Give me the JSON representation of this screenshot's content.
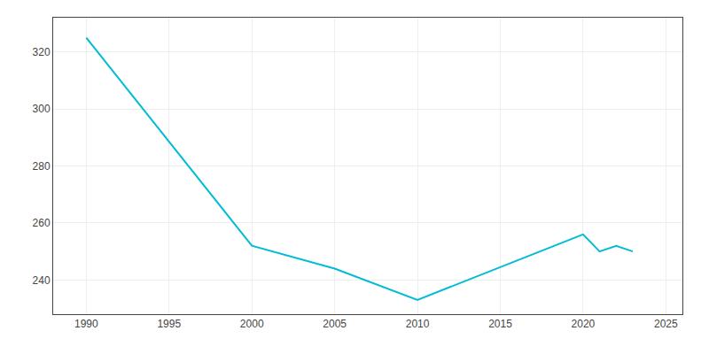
{
  "chart_data": {
    "type": "line",
    "x": [
      1990,
      2000,
      2005,
      2010,
      2020,
      2021,
      2022,
      2023
    ],
    "values": [
      325,
      252,
      244,
      233,
      256,
      250,
      252,
      250
    ],
    "color": "#00bcd4",
    "xlim": [
      1988,
      2026
    ],
    "ylim": [
      228,
      332
    ],
    "xticks": [
      1990,
      1995,
      2000,
      2005,
      2010,
      2015,
      2020,
      2025
    ],
    "yticks": [
      240,
      260,
      280,
      300,
      320
    ],
    "grid": true
  }
}
